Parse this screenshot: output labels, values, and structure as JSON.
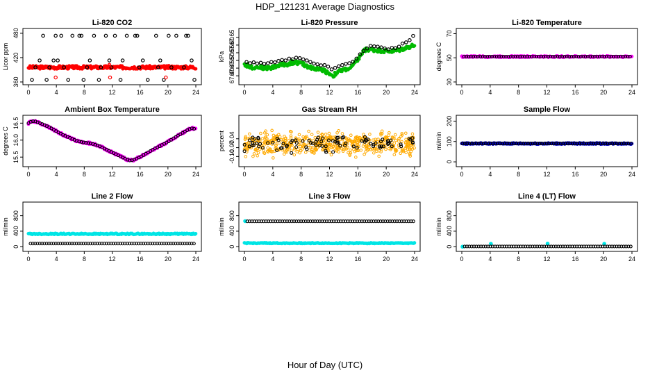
{
  "page": {
    "title": "HDP_121231  Average Diagnostics",
    "x_axis_title": "Hour of Day (UTC)"
  },
  "chart_data": [
    {
      "type": "scatter",
      "title": "Li-820 CO2",
      "ylabel": "Licor ppm",
      "xlim": [
        0,
        24
      ],
      "ylim": [
        360,
        485
      ],
      "xticks": [
        "0",
        "4",
        "8",
        "12",
        "16",
        "20",
        "24"
      ],
      "yticks": [
        "360",
        "420",
        "480"
      ],
      "series": [
        {
          "style": "band",
          "color": "#ff0000",
          "x": [
            0,
            24
          ],
          "y": [
            396,
            396
          ],
          "spread": 4
        },
        {
          "style": "ring",
          "color": "#000000",
          "x": [
            0.5,
            1.0,
            1.6,
            2.1,
            2.6,
            3.0,
            3.6,
            3.9,
            4.2,
            4.7,
            5.1,
            5.7,
            6.3,
            7.3,
            7.6,
            7.9,
            8.4,
            8.8,
            9.4,
            10.1,
            10.4,
            11.1,
            11.6,
            11.9,
            12.4,
            13.2,
            13.5,
            14.1,
            15.3,
            15.6,
            15.9,
            16.4,
            17.1,
            18.3,
            18.6,
            18.9,
            19.4,
            20.1,
            20.5,
            21.2,
            22.3,
            22.6,
            22.9,
            23.4,
            23.8
          ],
          "y": [
            365,
            396,
            413,
            474,
            365,
            396,
            413,
            474,
            413,
            474,
            396,
            365,
            474,
            474,
            474,
            365,
            396,
            413,
            474,
            365,
            396,
            474,
            413,
            396,
            474,
            365,
            413,
            474,
            474,
            474,
            396,
            413,
            365,
            474,
            396,
            413,
            365,
            474,
            396,
            474,
            396,
            474,
            474,
            413,
            365
          ]
        },
        {
          "style": "ring",
          "color": "#ff0000",
          "x": [
            3.9,
            11.7,
            19.7
          ],
          "y": [
            371,
            371,
            371
          ]
        },
        {
          "style": "ring",
          "color": "#ff0000",
          "x": [
            4.0,
            11.6
          ],
          "y": [
            394,
            402
          ]
        }
      ]
    },
    {
      "type": "scatter",
      "title": "Li-820 Pressure",
      "ylabel": "kPa",
      "xlim": [
        0,
        24
      ],
      "ylim": [
        67.36,
        67.69
      ],
      "xticks": [
        "0",
        "4",
        "8",
        "12",
        "16",
        "20",
        "24"
      ],
      "yticks": [
        "67.40",
        "67.45",
        "67.50",
        "67.55",
        "67.60",
        "67.65"
      ],
      "series": [
        {
          "style": "band",
          "color": "#00bb00",
          "x": [
            0,
            1,
            2,
            3,
            4,
            5,
            6,
            7,
            8,
            9,
            10,
            11,
            12,
            12.5,
            13,
            14,
            15,
            16,
            16.5,
            17,
            18,
            19,
            20,
            21,
            22,
            23,
            24
          ],
          "y": [
            67.475,
            67.455,
            67.458,
            67.45,
            67.455,
            67.47,
            67.475,
            67.49,
            67.48,
            67.46,
            67.445,
            67.44,
            67.415,
            67.4,
            67.42,
            67.44,
            67.45,
            67.505,
            67.54,
            67.57,
            67.57,
            67.565,
            67.56,
            67.56,
            67.57,
            67.585,
            67.6
          ],
          "spread": 0.012
        },
        {
          "style": "ring",
          "color": "#000000",
          "x": [
            0.3,
            0.8,
            1.3,
            1.8,
            2.3,
            2.8,
            3.3,
            3.8,
            4.3,
            4.8,
            5.3,
            5.8,
            6.3,
            6.8,
            7.3,
            7.8,
            8.3,
            8.8,
            9.3,
            9.8,
            10.3,
            10.8,
            11.3,
            11.8,
            12.3,
            12.8,
            13.3,
            13.8,
            14.3,
            14.8,
            15.3,
            15.8,
            16.3,
            16.8,
            17.3,
            17.8,
            18.3,
            18.8,
            19.3,
            19.8,
            20.3,
            20.8,
            21.3,
            21.8,
            22.3,
            22.8,
            23.3,
            23.8
          ],
          "y": [
            67.49,
            67.482,
            67.488,
            67.48,
            67.485,
            67.478,
            67.482,
            67.49,
            67.488,
            67.497,
            67.503,
            67.5,
            67.512,
            67.508,
            67.518,
            67.515,
            67.507,
            67.5,
            67.49,
            67.48,
            67.475,
            67.468,
            67.47,
            67.46,
            67.442,
            67.452,
            67.462,
            67.47,
            67.478,
            67.482,
            67.492,
            67.512,
            67.54,
            67.562,
            67.578,
            67.595,
            67.592,
            67.59,
            67.585,
            67.578,
            67.572,
            67.582,
            67.58,
            67.59,
            67.61,
            67.618,
            67.632,
            67.66
          ]
        }
      ]
    },
    {
      "type": "scatter",
      "title": "Li-820 Temperature",
      "ylabel": "degrees C",
      "xlim": [
        0,
        24
      ],
      "ylim": [
        30,
        72
      ],
      "xticks": [
        "0",
        "4",
        "8",
        "12",
        "16",
        "20",
        "24"
      ],
      "yticks": [
        "30",
        "50",
        "70"
      ],
      "series": [
        {
          "style": "band",
          "color": "#ff00ff",
          "x": [
            0,
            24
          ],
          "y": [
            51,
            51
          ],
          "spread": 0.6
        },
        {
          "style": "ring-row",
          "color": "#000000",
          "x": [
            0.3,
            24
          ],
          "y": [
            51,
            51
          ],
          "step": 0.33
        }
      ]
    },
    {
      "type": "scatter",
      "title": "Ambient Box Temperature",
      "ylabel": "degrees C",
      "xlim": [
        0,
        24
      ],
      "ylim": [
        15.3,
        16.65
      ],
      "xticks": [
        "0",
        "4",
        "8",
        "12",
        "16",
        "20",
        "24"
      ],
      "yticks": [
        "15.5",
        "16.0",
        "16.5"
      ],
      "series": [
        {
          "style": "band",
          "color": "#ff00ff",
          "x": [
            0,
            0.5,
            1,
            2,
            3,
            4,
            5,
            6,
            7,
            8,
            9,
            10,
            11,
            12,
            13,
            14,
            14.5,
            15,
            16,
            17,
            18,
            19,
            20,
            21,
            22,
            23,
            23.5,
            24
          ],
          "y": [
            16.5,
            16.56,
            16.55,
            16.47,
            16.38,
            16.26,
            16.15,
            16.06,
            15.97,
            15.93,
            15.9,
            15.84,
            15.74,
            15.64,
            15.54,
            15.44,
            15.4,
            15.41,
            15.5,
            15.62,
            15.74,
            15.84,
            15.95,
            16.08,
            16.2,
            16.32,
            16.35,
            16.32
          ],
          "spread": 0.03
        },
        {
          "style": "ring-curve",
          "color": "#000000",
          "x": [
            0,
            0.5,
            1,
            2,
            3,
            4,
            5,
            6,
            7,
            8,
            9,
            10,
            11,
            12,
            13,
            14,
            14.5,
            15,
            16,
            17,
            18,
            19,
            20,
            21,
            22,
            23,
            23.5,
            24
          ],
          "y": [
            16.5,
            16.56,
            16.55,
            16.47,
            16.38,
            16.26,
            16.15,
            16.06,
            15.97,
            15.93,
            15.9,
            15.84,
            15.74,
            15.64,
            15.54,
            15.44,
            15.4,
            15.41,
            15.5,
            15.62,
            15.74,
            15.84,
            15.95,
            16.08,
            16.2,
            16.32,
            16.35,
            16.32
          ],
          "step": 0.33
        }
      ]
    },
    {
      "type": "scatter",
      "title": "Gas Stream RH",
      "ylabel": "percent",
      "xlim": [
        0,
        24
      ],
      "ylim": [
        -0.125,
        0.03
      ],
      "xticks": [
        "0",
        "4",
        "8",
        "12",
        "16",
        "20",
        "24"
      ],
      "yticks": [
        "-0.10",
        "-0.07",
        "-0.04"
      ],
      "series": [
        {
          "style": "noise",
          "color": "#ffaa00",
          "center": -0.055,
          "spread": 0.055,
          "count": 520,
          "seed": 7
        },
        {
          "style": "noise-ring",
          "color": "#000000",
          "center": -0.055,
          "spread": 0.04,
          "count": 95,
          "seed": 19
        }
      ]
    },
    {
      "type": "scatter",
      "title": "Sample Flow",
      "ylabel": "ml/min",
      "xlim": [
        0,
        24
      ],
      "ylim": [
        -10,
        215
      ],
      "xticks": [
        "0",
        "4",
        "8",
        "12",
        "16",
        "20",
        "24"
      ],
      "yticks": [
        "0",
        "100",
        "200"
      ],
      "series": [
        {
          "style": "band",
          "color": "#0000cc",
          "x": [
            0,
            24
          ],
          "y": [
            90,
            90
          ],
          "spread": 3
        },
        {
          "style": "ring-row",
          "color": "#000000",
          "x": [
            0.1,
            24
          ],
          "y": [
            90,
            90
          ],
          "step": 0.33
        }
      ]
    },
    {
      "type": "scatter",
      "title": "Line 2 Flow",
      "ylabel": "ml/min",
      "xlim": [
        0,
        24
      ],
      "ylim": [
        -50,
        1080
      ],
      "xticks": [
        "0",
        "4",
        "8",
        "12",
        "16",
        "20",
        "24"
      ],
      "yticks": [
        "0",
        "400",
        "800"
      ],
      "series": [
        {
          "style": "band",
          "color": "#00e5e5",
          "x": [
            0,
            24
          ],
          "y": [
            330,
            330
          ],
          "spread": 15
        },
        {
          "style": "ring-row",
          "color": "#000000",
          "x": [
            0.3,
            24
          ],
          "y": [
            80,
            80
          ],
          "step": 0.33
        }
      ]
    },
    {
      "type": "scatter",
      "title": "Line 3 Flow",
      "ylabel": "ml/min",
      "xlim": [
        0,
        24
      ],
      "ylim": [
        -50,
        1080
      ],
      "xticks": [
        "0",
        "4",
        "8",
        "12",
        "16",
        "20",
        "24"
      ],
      "yticks": [
        "0",
        "400",
        "800"
      ],
      "series": [
        {
          "style": "band",
          "color": "#00e5e5",
          "x": [
            0,
            24
          ],
          "y": [
            90,
            90
          ],
          "spread": 10
        },
        {
          "style": "dot",
          "color": "#00e5e5",
          "x": [
            0.1
          ],
          "y": [
            660
          ]
        },
        {
          "style": "ring-row",
          "color": "#000000",
          "x": [
            0.4,
            24
          ],
          "y": [
            655,
            655
          ],
          "step": 0.33
        }
      ]
    },
    {
      "type": "scatter",
      "title": "Line 4 (LT) Flow",
      "ylabel": "ml/min",
      "xlim": [
        0,
        24
      ],
      "ylim": [
        -50,
        1080
      ],
      "xticks": [
        "0",
        "4",
        "8",
        "12",
        "16",
        "20",
        "24"
      ],
      "yticks": [
        "0",
        "400",
        "800"
      ],
      "series": [
        {
          "style": "dot",
          "color": "#00e5e5",
          "x": [
            0.1,
            4.1,
            12.1,
            20.1
          ],
          "y": [
            0,
            75,
            80,
            75
          ]
        },
        {
          "style": "ring-row",
          "color": "#000000",
          "x": [
            0.4,
            24
          ],
          "y": [
            5,
            5
          ],
          "step": 0.33
        }
      ]
    }
  ]
}
